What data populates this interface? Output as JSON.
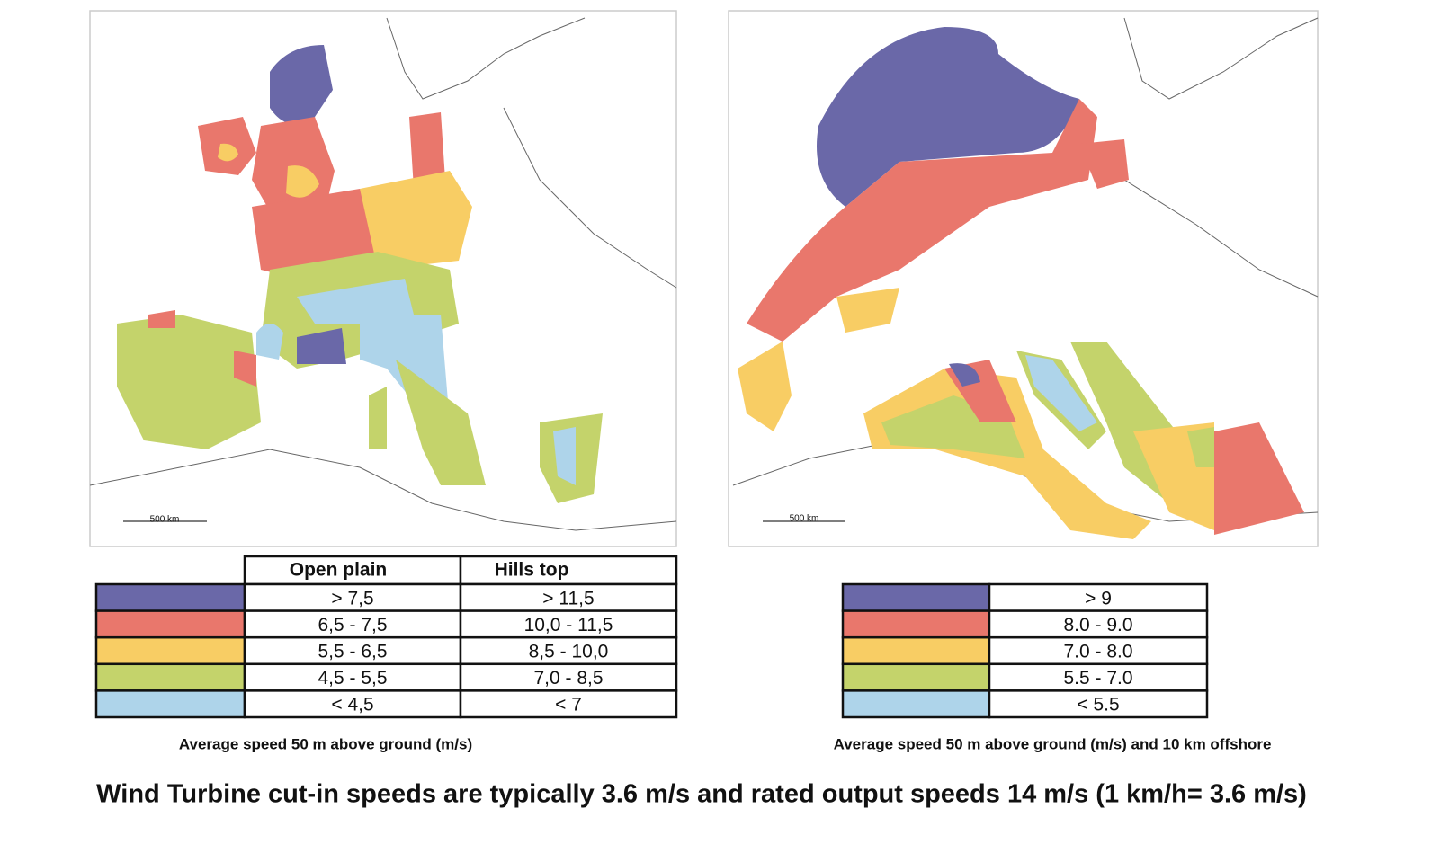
{
  "maps": [
    {
      "scale_label": "500 km",
      "legend": {
        "headers": [
          "Open plain",
          "Hills top"
        ],
        "rows": [
          {
            "color": "#6a68a8",
            "cells": [
              "> 7,5",
              "> 11,5"
            ]
          },
          {
            "color": "#e9776c",
            "cells": [
              "6,5 - 7,5",
              "10,0 - 11,5"
            ]
          },
          {
            "color": "#f8cd64",
            "cells": [
              "5,5 - 6,5",
              "8,5 - 10,0"
            ]
          },
          {
            "color": "#c4d36b",
            "cells": [
              "4,5 - 5,5",
              "7,0 - 8,5"
            ]
          },
          {
            "color": "#aed4ea",
            "cells": [
              "< 4,5",
              "< 7"
            ]
          }
        ]
      },
      "caption": "Average speed 50 m above ground (m/s)"
    },
    {
      "scale_label": "500 km",
      "legend": {
        "headers": [],
        "rows": [
          {
            "color": "#6a68a8",
            "cells": [
              "> 9"
            ]
          },
          {
            "color": "#e9776c",
            "cells": [
              "8.0 - 9.0"
            ]
          },
          {
            "color": "#f8cd64",
            "cells": [
              "7.0 - 8.0"
            ]
          },
          {
            "color": "#c4d36b",
            "cells": [
              "5.5 - 7.0"
            ]
          },
          {
            "color": "#aed4ea",
            "cells": [
              "< 5.5"
            ]
          }
        ]
      },
      "caption": "Average speed 50 m above ground (m/s) and 10 km offshore"
    }
  ],
  "footer": "Wind Turbine cut-in speeds are typically  3.6 m/s and rated output speeds 14 m/s (1 km/h= 3.6 m/s)"
}
